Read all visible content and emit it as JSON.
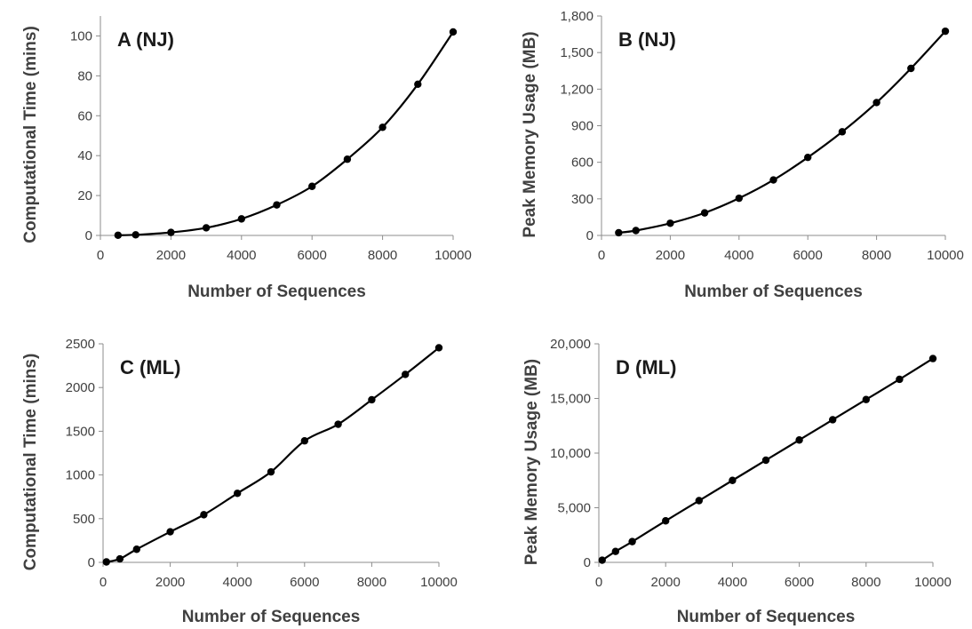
{
  "chart_data": [
    {
      "type": "line",
      "panel_label": "A (NJ)",
      "xlabel": "Number of Sequences",
      "ylabel": "Computational Time (mins)",
      "xlim": [
        0,
        10000
      ],
      "ylim": [
        0,
        110
      ],
      "x_ticks": [
        "0",
        "2000",
        "4000",
        "6000",
        "8000",
        "10000"
      ],
      "y_ticks": [
        "0",
        "20",
        "40",
        "60",
        "80",
        "100"
      ],
      "grid": false,
      "series": [
        {
          "x": [
            500,
            1000,
            2000,
            3000,
            4000,
            5000,
            6000,
            7000,
            8000,
            9000,
            10000
          ],
          "y": [
            0.1,
            0.3,
            1.5,
            3.8,
            8.3,
            15.3,
            24.6,
            38.2,
            54.2,
            75.8,
            102
          ]
        }
      ]
    },
    {
      "type": "line",
      "panel_label": "B (NJ)",
      "xlabel": "Number of Sequences",
      "ylabel": "Peak Memory Usage (MB)",
      "xlim": [
        0,
        10000
      ],
      "ylim": [
        0,
        1800
      ],
      "x_ticks": [
        "0",
        "2000",
        "4000",
        "6000",
        "8000",
        "10000"
      ],
      "y_ticks": [
        "0",
        "300",
        "600",
        "900",
        "1,200",
        "1,500",
        "1,800"
      ],
      "grid": false,
      "series": [
        {
          "x": [
            500,
            1000,
            2000,
            3000,
            4000,
            5000,
            6000,
            7000,
            8000,
            9000,
            10000
          ],
          "y": [
            22,
            40,
            100,
            185,
            305,
            455,
            640,
            850,
            1090,
            1370,
            1675
          ]
        }
      ]
    },
    {
      "type": "line",
      "panel_label": "C (ML)",
      "xlabel": "Number of Sequences",
      "ylabel": "Computational Time (mins)",
      "xlim": [
        0,
        10000
      ],
      "ylim": [
        0,
        2500
      ],
      "x_ticks": [
        "0",
        "2000",
        "4000",
        "6000",
        "8000",
        "10000"
      ],
      "y_ticks": [
        "0",
        "500",
        "1000",
        "1500",
        "2000",
        "2500"
      ],
      "grid": false,
      "series": [
        {
          "x": [
            100,
            500,
            1000,
            2000,
            3000,
            4000,
            5000,
            6000,
            7000,
            8000,
            9000,
            10000
          ],
          "y": [
            5,
            40,
            150,
            350,
            545,
            790,
            1035,
            1390,
            1580,
            1860,
            2150,
            2455
          ]
        }
      ]
    },
    {
      "type": "line",
      "panel_label": "D (ML)",
      "xlabel": "Number of Sequences",
      "ylabel": "Peak Memory Usage (MB)",
      "xlim": [
        0,
        10000
      ],
      "ylim": [
        0,
        20000
      ],
      "x_ticks": [
        "0",
        "2000",
        "4000",
        "6000",
        "8000",
        "10000"
      ],
      "y_ticks": [
        "0",
        "5,000",
        "10,000",
        "15,000",
        "20,000"
      ],
      "grid": false,
      "series": [
        {
          "x": [
            100,
            500,
            1000,
            2000,
            3000,
            4000,
            5000,
            6000,
            7000,
            8000,
            9000,
            10000
          ],
          "y": [
            200,
            1000,
            1900,
            3800,
            5650,
            7500,
            9350,
            11200,
            13050,
            14900,
            16750,
            18650
          ]
        }
      ]
    }
  ]
}
